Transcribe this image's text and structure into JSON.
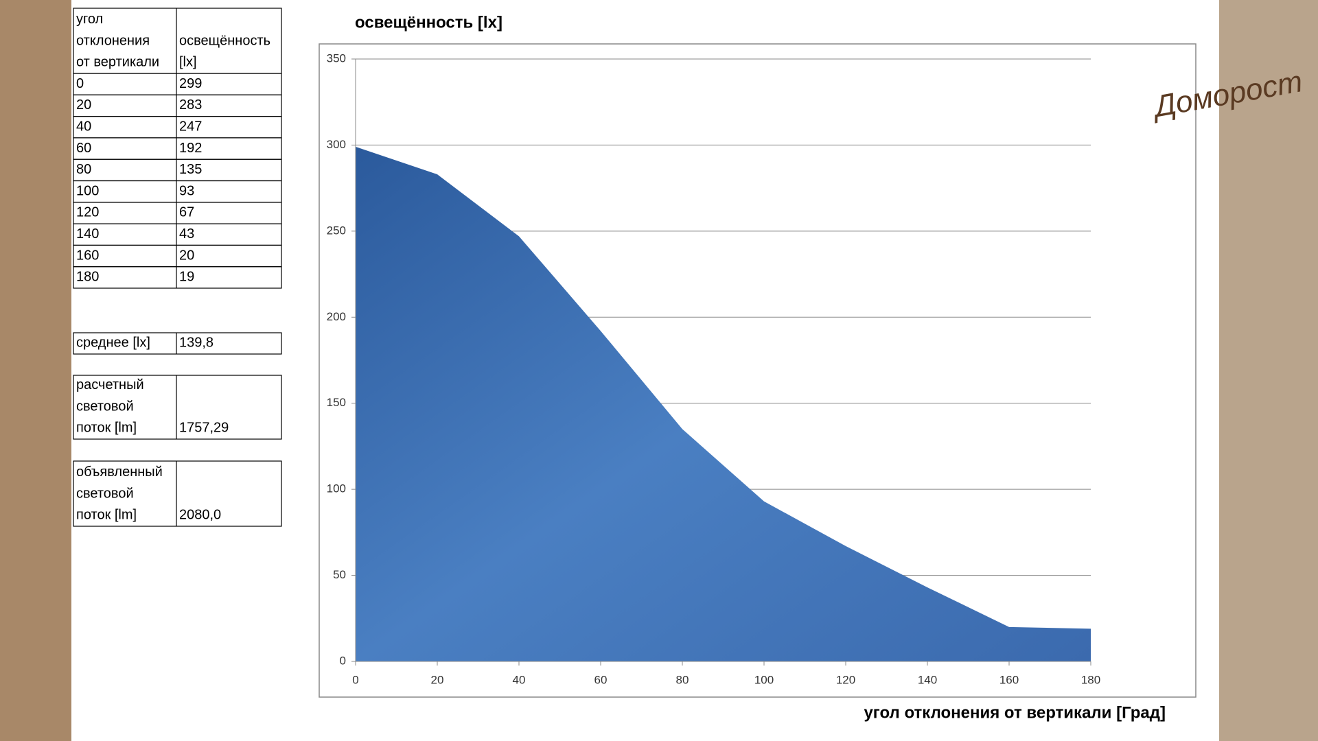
{
  "table": {
    "header": [
      [
        "угол",
        "отклонения",
        "от вертикали"
      ],
      [
        "освещённость",
        "[lx]"
      ]
    ]
  },
  "summary": [
    {
      "label": [
        "среднее  [lx]"
      ],
      "value": "139,8"
    },
    {
      "label": [
        "расчетный",
        "световой",
        "поток  [lm]"
      ],
      "value": "1757,29"
    },
    {
      "label": [
        "объявленный",
        "световой",
        "поток  [lm]"
      ],
      "value": "2080,0"
    }
  ],
  "logo": "Доморост",
  "chart_data": {
    "type": "area",
    "title": "освещённость [lx]",
    "x_label": "угол отклонения от вертикали  [Град]",
    "x": [
      0,
      20,
      40,
      60,
      80,
      100,
      120,
      140,
      160,
      180
    ],
    "values": [
      299,
      283,
      247,
      192,
      135,
      93,
      67,
      43,
      20,
      19
    ],
    "color": "#3f6fb2",
    "xlim": [
      0,
      180
    ],
    "xticks": [
      0,
      20,
      40,
      60,
      80,
      100,
      120,
      140,
      160,
      180
    ],
    "ylim": [
      0,
      350
    ],
    "yticks": [
      0,
      50,
      100,
      150,
      200,
      250,
      300,
      350
    ],
    "grid": true
  }
}
